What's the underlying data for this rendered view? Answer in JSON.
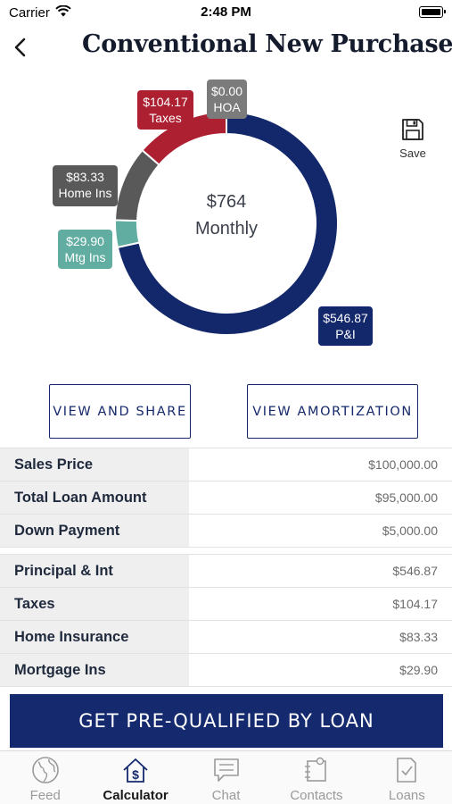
{
  "status_bar": {
    "carrier": "Carrier",
    "time": "2:48 PM"
  },
  "header": {
    "title": "Conventional New Purchase"
  },
  "save": {
    "label": "Save"
  },
  "chart_data": {
    "type": "pie",
    "center_amount": "$764",
    "center_label": "Monthly",
    "slices": [
      {
        "name": "P&I",
        "value": 546.87,
        "amount": "$546.87",
        "color": "#13286b"
      },
      {
        "name": "Mtg Ins",
        "value": 29.9,
        "amount": "$29.90",
        "color": "#62ada1"
      },
      {
        "name": "Home Ins",
        "value": 83.33,
        "amount": "$83.33",
        "color": "#595959"
      },
      {
        "name": "Taxes",
        "value": 104.17,
        "amount": "$104.17",
        "color": "#ac2032"
      },
      {
        "name": "HOA",
        "value": 0.0,
        "amount": "$0.00",
        "color": "#7b7b7b"
      }
    ]
  },
  "actions": {
    "view_share": "VIEW AND SHARE",
    "view_amortization": "VIEW AMORTIZATION"
  },
  "loan_summary": [
    {
      "label": "Sales Price",
      "value": "$100,000.00"
    },
    {
      "label": "Total Loan Amount",
      "value": "$95,000.00"
    },
    {
      "label": "Down Payment",
      "value": "$5,000.00"
    }
  ],
  "payment_breakdown": [
    {
      "label": "Principal & Int",
      "value": "$546.87"
    },
    {
      "label": "Taxes",
      "value": "$104.17"
    },
    {
      "label": "Home Insurance",
      "value": "$83.33"
    },
    {
      "label": "Mortgage Ins",
      "value": "$29.90"
    }
  ],
  "cta": {
    "label": "GET PRE-QUALIFIED BY LOAN"
  },
  "tabs": [
    {
      "label": "Feed",
      "icon": "globe-icon"
    },
    {
      "label": "Calculator",
      "icon": "house-dollar-icon",
      "active": true
    },
    {
      "label": "Chat",
      "icon": "chat-bubble-icon"
    },
    {
      "label": "Contacts",
      "icon": "contacts-icon"
    },
    {
      "label": "Loans",
      "icon": "document-check-icon"
    }
  ]
}
